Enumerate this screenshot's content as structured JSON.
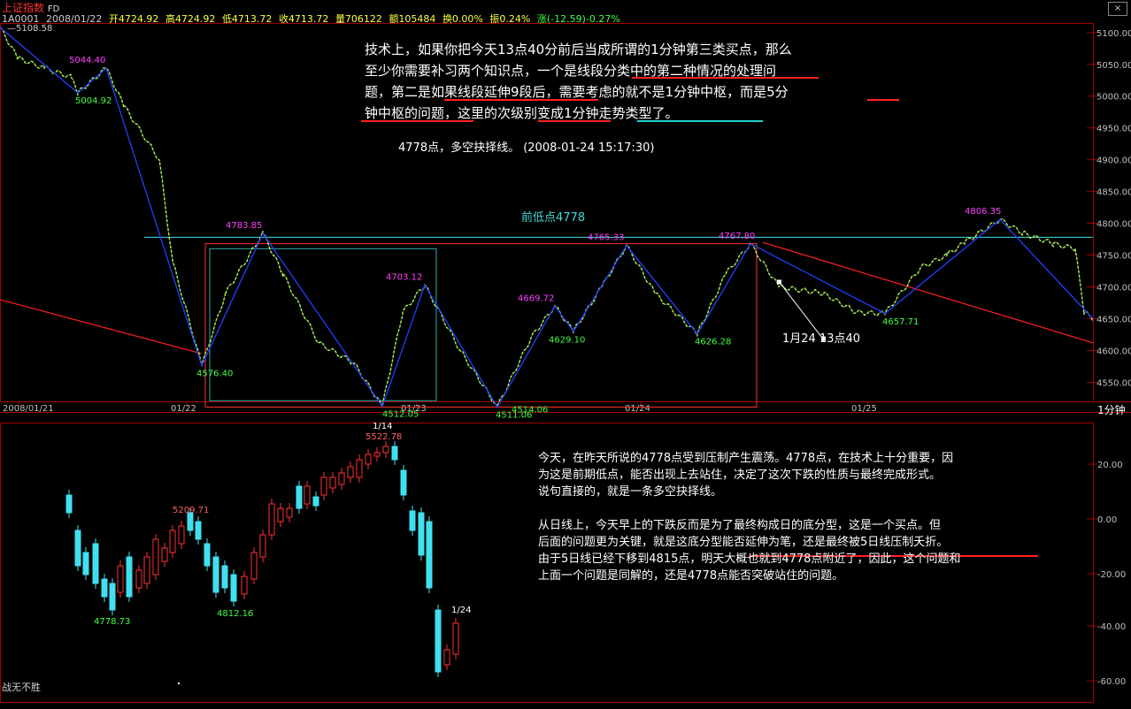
{
  "header": {
    "title": "上证指数",
    "suffix": "FD",
    "code": "1A0001",
    "date": "2008/01/22",
    "open": "开4724.92",
    "high": "高4724.92",
    "low": "低4713.72",
    "close": "收4713.72",
    "volume": "量706122",
    "amount": "额105484",
    "turnover": "换0.00%",
    "amplitude": "振0.24%",
    "change": "涨(-12.59)-0.27%",
    "ref_level": "5108.58"
  },
  "top_note": {
    "lines": [
      "技术上，如果你把今天13点40分前后当成所谓的1分钟第三类买点，那么",
      "至少你需要补习两个知识点，一个是线段分类中的第二种情况的处理问",
      "题，第二是如果线段延伸9段后，需要考虑的就不是1分钟中枢，而是5分",
      "钟中枢的问题，这里的次级别变成1分钟走势类型了。"
    ],
    "sub": "4778点，多空抉择线。  (2008-01-24 15:17:30)"
  },
  "annotations": {
    "prev_low": "前低点4778",
    "marker": "1月24 13点40",
    "period": "1分钟",
    "footer": "战无不胜"
  },
  "bottom_note": {
    "para1": [
      "今天，在昨天所说的4778点受到压制产生震荡。4778点，在技术上十分重要，因",
      "为这是前期低点，能否出现上去站住，决定了这次下跌的性质与最终完成形式。",
      "说句直接的，就是一条多空抉择线。"
    ],
    "para2": [
      "从日线上，今天早上的下跌反而是为了最终构成日的底分型，这是一个买点。但",
      "后面的问题更为关键，就是这底分型能否延伸为笔，还是最终被5日线压制夭折。",
      "由于5日线已经下移到4815点，明天大概也就到4778点附近了，因此，这个问题和",
      "上面一个问题是同解的，还是4778点能否突破站住的问题。"
    ]
  },
  "chart_data": [
    {
      "type": "line",
      "title": "1分钟",
      "x_ticks": [
        "2008/01/21",
        "01/22",
        "01/23",
        "01/24",
        "01/25"
      ],
      "y_ticks": [
        4550,
        4600,
        4650,
        4700,
        4750,
        4800,
        4850,
        4900,
        4950,
        5000,
        5050,
        5100
      ],
      "ylim": [
        4520,
        5115
      ],
      "reference_level": 4778,
      "pivot_labels": [
        {
          "label": "5044.40",
          "value": 5044.4
        },
        {
          "label": "5004.92",
          "value": 5004.92
        },
        {
          "label": "4576.40",
          "value": 4576.4
        },
        {
          "label": "4783.85",
          "value": 4783.85
        },
        {
          "label": "4512.05",
          "value": 4512.05
        },
        {
          "label": "4703.12",
          "value": 4703.12
        },
        {
          "label": "4511.06",
          "value": 4511.06
        },
        {
          "label": "4514.06",
          "value": 4514.06
        },
        {
          "label": "4669.72",
          "value": 4669.72
        },
        {
          "label": "4629.10",
          "value": 4629.1
        },
        {
          "label": "4765.33",
          "value": 4765.33
        },
        {
          "label": "4626.28",
          "value": 4626.28
        },
        {
          "label": "4767.80",
          "value": 4767.8
        },
        {
          "label": "4657.71",
          "value": 4657.71
        },
        {
          "label": "4806.35",
          "value": 4806.35
        }
      ]
    },
    {
      "type": "candlestick",
      "y_ticks": [
        "20.00",
        "0.00",
        "-20.00",
        "-40.00",
        "-60.00"
      ],
      "labels": [
        {
          "text": "4778.73"
        },
        {
          "text": "5209.71"
        },
        {
          "text": "4812.16"
        },
        {
          "text": "5522.78"
        },
        {
          "text": "1/14"
        },
        {
          "text": "1/24"
        }
      ]
    }
  ],
  "colors": {
    "background": "#000000",
    "grid_border": "#a00000",
    "axis_text": "#c0c0c0",
    "pivot_high": "#ff40ff",
    "pivot_low": "#40ff40",
    "ref_line": "#40c8c8",
    "trend_line": "#ff2020",
    "stroke_line": "#2040ff",
    "up_candle": "#ff3030",
    "down_candle": "#40e0f0",
    "underline_red": "#ff2020",
    "underline_cyan": "#20d0d0"
  }
}
